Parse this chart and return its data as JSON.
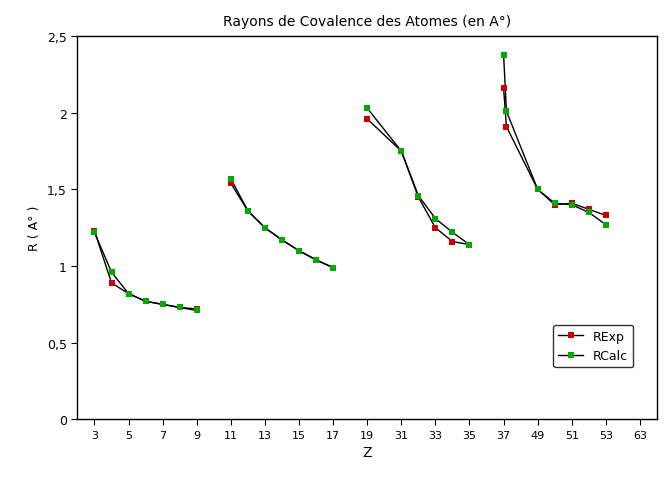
{
  "title": "Rayons de Covalence des Atomes (en A°)",
  "xlabel": "Z",
  "ylabel": "R ( A° )",
  "ylim": [
    0,
    2.5
  ],
  "yticks": [
    0,
    0.5,
    1.0,
    1.5,
    2.0,
    2.5
  ],
  "ytick_labels": [
    "0",
    "0,5",
    "1",
    "1,5",
    "2",
    "2,5"
  ],
  "xtick_labels": [
    "3",
    "5",
    "7",
    "9",
    "11",
    "13",
    "15",
    "17",
    "19",
    "31",
    "33",
    "35",
    "37",
    "49",
    "51",
    "53",
    "63"
  ],
  "rexp_color": "#cc0000",
  "rcalc_color": "#00aa00",
  "line_color": "#000000",
  "groups": [
    {
      "z": [
        3,
        4,
        5,
        6,
        7,
        8,
        9
      ],
      "rexp": [
        1.23,
        0.89,
        0.82,
        0.77,
        0.75,
        0.73,
        0.72
      ],
      "rcalc": [
        1.22,
        0.96,
        0.82,
        0.77,
        0.75,
        0.73,
        0.71
      ]
    },
    {
      "z": [
        11,
        12,
        13,
        14,
        15,
        16,
        17
      ],
      "rexp": [
        1.54,
        1.36,
        1.25,
        1.17,
        1.1,
        1.04,
        0.99
      ],
      "rcalc": [
        1.57,
        1.36,
        1.25,
        1.17,
        1.1,
        1.04,
        0.99
      ]
    },
    {
      "z": [
        19,
        31,
        32,
        33,
        34,
        35
      ],
      "rexp": [
        1.96,
        1.75,
        1.45,
        1.25,
        1.16,
        1.14
      ],
      "rcalc": [
        2.03,
        1.75,
        1.46,
        1.31,
        1.22,
        1.14
      ]
    },
    {
      "z": [
        37,
        38,
        49,
        50,
        51,
        52,
        53
      ],
      "rexp": [
        2.16,
        1.91,
        1.5,
        1.4,
        1.41,
        1.37,
        1.33
      ],
      "rcalc": [
        2.38,
        2.01,
        1.5,
        1.41,
        1.4,
        1.35,
        1.27
      ]
    }
  ],
  "background_color": "#ffffff"
}
